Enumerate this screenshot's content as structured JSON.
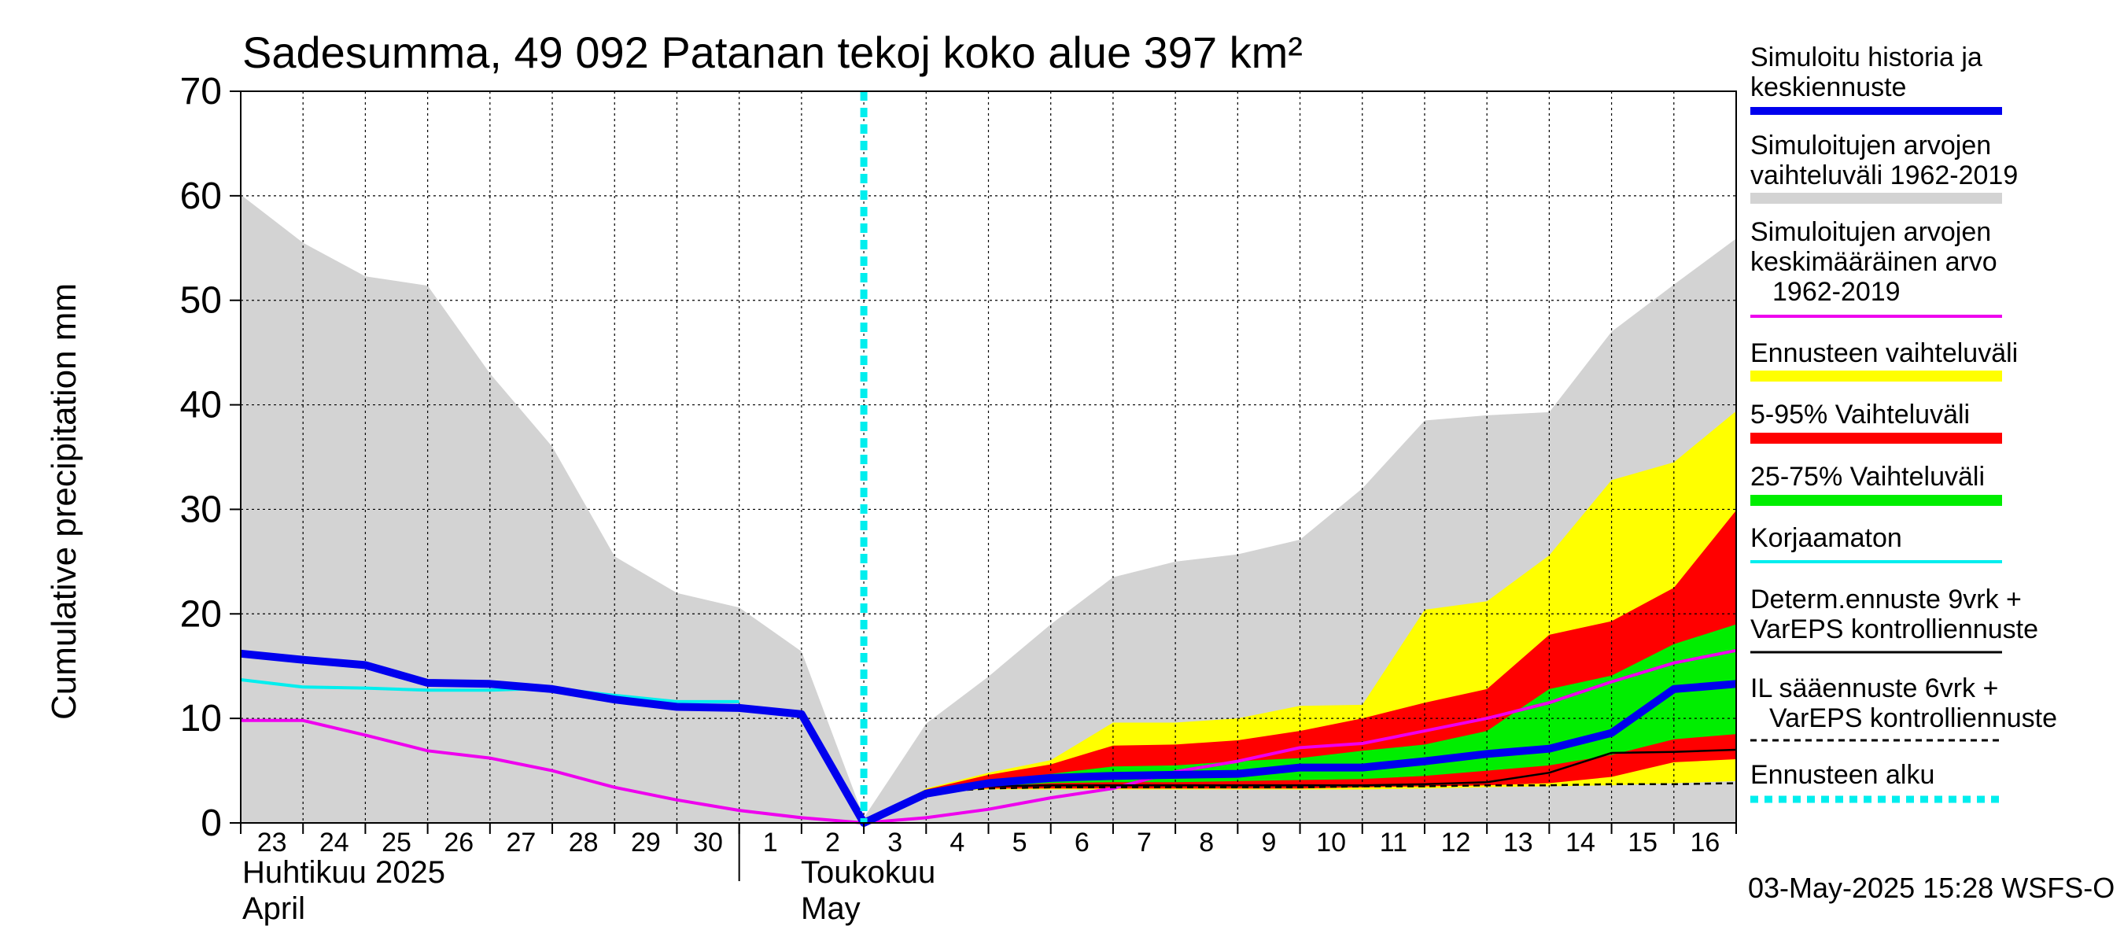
{
  "chart_data": {
    "type": "area",
    "title": "Sadesumma, 49 092 Patanan tekoj koko alue 397 km²",
    "ylabel": "Cumulative precipitation   mm",
    "ylim": [
      0,
      70
    ],
    "yticks": [
      0,
      10,
      20,
      30,
      40,
      50,
      60,
      70
    ],
    "grid": true,
    "legend_position": "right",
    "x_dates": [
      "2025-04-23",
      "2025-04-24",
      "2025-04-25",
      "2025-04-26",
      "2025-04-27",
      "2025-04-28",
      "2025-04-29",
      "2025-04-30",
      "2025-05-01",
      "2025-05-02",
      "2025-05-03",
      "2025-05-04",
      "2025-05-05",
      "2025-05-06",
      "2025-05-07",
      "2025-05-08",
      "2025-05-09",
      "2025-05-10",
      "2025-05-11",
      "2025-05-12",
      "2025-05-13",
      "2025-05-14",
      "2025-05-15",
      "2025-05-16",
      "2025-05-17"
    ],
    "day_labels": [
      "23",
      "24",
      "25",
      "26",
      "27",
      "28",
      "29",
      "30",
      "1",
      "2",
      "3",
      "4",
      "5",
      "6",
      "7",
      "8",
      "9",
      "10",
      "11",
      "12",
      "13",
      "14",
      "15",
      "16"
    ],
    "month_labels": {
      "april_fi": "Huhtikuu  2025",
      "april_en": "April",
      "may_fi": "Toukokuu",
      "may_en": "May"
    },
    "forecast_start": "2025-05-03",
    "series": [
      {
        "name": "Simuloitu historia ja keskiennuste",
        "color": "#0000ee",
        "values": [
          16.2,
          15.6,
          15.1,
          13.4,
          13.3,
          12.8,
          11.8,
          11.1,
          11.0,
          10.4,
          0.0,
          2.8,
          3.8,
          4.3,
          4.5,
          4.6,
          4.7,
          5.3,
          5.3,
          5.9,
          6.6,
          7.1,
          8.6,
          12.8,
          13.3
        ]
      },
      {
        "name": "Simuloitujen arvojen vaihteluväli 1962-2019",
        "color": "#d3d3d3",
        "lower": [
          0,
          0,
          0,
          0,
          0,
          0,
          0,
          0,
          0,
          0,
          0,
          0,
          0,
          0,
          0,
          0,
          0,
          0,
          0,
          0,
          0,
          0,
          0,
          0,
          0
        ],
        "upper": [
          60.1,
          55.5,
          52.3,
          51.4,
          43.0,
          36.0,
          25.5,
          22.0,
          20.6,
          16.4,
          0.5,
          9.5,
          14.0,
          19.0,
          23.5,
          25.0,
          25.7,
          27.1,
          32.0,
          38.5,
          39.0,
          39.3,
          47.0,
          51.5,
          55.9
        ]
      },
      {
        "name": "Simuloitujen arvojen keskimääräinen arvo 1962-2019",
        "color": "#ee00ee",
        "values": [
          9.8,
          9.8,
          8.4,
          6.9,
          6.2,
          5.0,
          3.4,
          2.2,
          1.2,
          0.5,
          0.0,
          0.5,
          1.3,
          2.4,
          3.3,
          4.9,
          5.9,
          7.2,
          7.6,
          8.8,
          10.0,
          11.5,
          13.5,
          15.3,
          16.5
        ]
      },
      {
        "name": "Ennusteen vaihteluväli",
        "color": "#ffff00",
        "start_index": 10,
        "lower": [
          0.0,
          3.0,
          3.2,
          3.2,
          3.2,
          3.2,
          3.2,
          3.2,
          3.2,
          3.3,
          3.4,
          3.5,
          3.6,
          3.8,
          4.0
        ],
        "upper": [
          0.0,
          3.3,
          4.8,
          6.0,
          9.6,
          9.6,
          10.0,
          11.2,
          11.3,
          20.4,
          21.2,
          25.6,
          32.8,
          34.5,
          39.4
        ]
      },
      {
        "name": "5-95% Vaihteluväli",
        "color": "#ff0000",
        "start_index": 10,
        "lower": [
          0.0,
          3.1,
          3.3,
          3.3,
          3.3,
          3.3,
          3.3,
          3.3,
          3.4,
          3.5,
          3.6,
          3.8,
          4.4,
          5.8,
          6.1
        ],
        "upper": [
          0.0,
          3.2,
          4.6,
          5.6,
          7.4,
          7.5,
          7.9,
          8.8,
          10.0,
          11.5,
          12.8,
          18.0,
          19.3,
          22.5,
          29.9
        ]
      },
      {
        "name": "25-75% Vaihteluväli",
        "color": "#00ee00",
        "start_index": 10,
        "lower": [
          0.0,
          3.1,
          3.5,
          3.8,
          3.9,
          3.9,
          4.0,
          4.1,
          4.2,
          4.5,
          5.0,
          5.5,
          6.5,
          8.0,
          8.5
        ],
        "upper": [
          0.0,
          3.1,
          4.0,
          4.7,
          5.4,
          5.5,
          5.9,
          6.2,
          6.9,
          7.5,
          8.8,
          12.8,
          14.1,
          17.1,
          19.0
        ]
      },
      {
        "name": "Korjaamaton",
        "color": "#00eeee",
        "values": [
          13.7,
          13.0,
          12.9,
          12.7,
          12.7,
          12.9,
          12.2,
          11.6,
          11.6,
          null,
          null,
          null,
          null,
          null,
          null,
          null,
          null,
          null,
          null,
          null,
          null,
          null,
          null,
          null,
          null
        ]
      },
      {
        "name": "Determ.ennuste 9vrk + VarEPS kontrolliennuste",
        "color": "#000000",
        "start_index": 10,
        "values": [
          0.0,
          3.0,
          3.5,
          3.6,
          3.6,
          3.6,
          3.6,
          3.6,
          3.6,
          3.7,
          3.9,
          4.8,
          6.7,
          6.8,
          7.0
        ]
      },
      {
        "name": "IL sääennuste 6vrk + VarEPS kontrolliennuste",
        "color": "#000000",
        "dashed": true,
        "start_index": 10,
        "values": [
          0.0,
          2.9,
          3.3,
          3.4,
          3.4,
          3.4,
          3.4,
          3.4,
          3.5,
          3.5,
          3.6,
          3.6,
          3.7,
          3.7,
          3.8
        ]
      }
    ],
    "legend": [
      {
        "label": "Simuloitu historia ja keskiennuste",
        "color": "#0000ee",
        "style": "line"
      },
      {
        "label": "Simuloitujen arvojen vaihteluväli 1962-2019",
        "color": "#d3d3d3",
        "style": "band"
      },
      {
        "label": "Simuloitujen arvojen keskimääräinen arvo 1962-2019",
        "color": "#ee00ee",
        "style": "thin"
      },
      {
        "label": "Ennusteen vaihteluväli",
        "color": "#ffff00",
        "style": "band"
      },
      {
        "label": "5-95% Vaihteluväli",
        "color": "#ff0000",
        "style": "band"
      },
      {
        "label": "25-75% Vaihteluväli",
        "color": "#00ee00",
        "style": "band"
      },
      {
        "label": "Korjaamaton",
        "color": "#00eeee",
        "style": "thin"
      },
      {
        "label": "Determ.ennuste 9vrk + VarEPS kontrolliennuste",
        "color": "#000000",
        "style": "thin"
      },
      {
        "label": "IL sääennuste 6vrk + VarEPS kontrolliennuste",
        "color": "#000000",
        "style": "dashed"
      },
      {
        "label": "Ennusteen alku",
        "color": "#00eeee",
        "style": "dotted"
      }
    ],
    "legend_text": {
      "sim_history": [
        "Simuloitu historia ja",
        "keskiennuste"
      ],
      "sim_range": [
        "Simuloitujen arvojen",
        "vaihteluväli 1962-2019"
      ],
      "sim_mean": [
        "Simuloitujen arvojen",
        "keskimääräinen arvo",
        "1962-2019"
      ],
      "forecast_range": [
        "Ennusteen vaihteluväli"
      ],
      "p5_95": [
        "5-95% Vaihteluväli"
      ],
      "p25_75": [
        "25-75% Vaihteluväli"
      ],
      "uncorrected": [
        "Korjaamaton"
      ],
      "determ": [
        "Determ.ennuste 9vrk +",
        "VarEPS kontrolliennuste"
      ],
      "il_forecast": [
        "IL sääennuste 6vrk  +",
        "VarEPS kontrolliennuste"
      ],
      "forecast_start": [
        "Ennusteen alku"
      ]
    },
    "timestamp": "03-May-2025 15:28 WSFS-O"
  }
}
